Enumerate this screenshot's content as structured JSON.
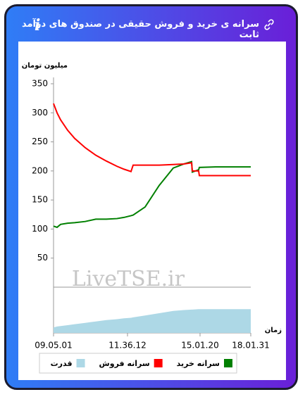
{
  "header": {
    "title": "سرانه ی خرید و فروش حقیقی در صندوق های درآمد ثابت"
  },
  "chart_data": {
    "type": "line",
    "y_label": "میلیون تومان",
    "x_label": "زمان",
    "watermark": "LiveTSE.ir",
    "x": [
      0,
      5,
      10,
      20,
      30,
      45,
      60,
      75,
      90,
      100,
      110,
      113,
      130,
      150,
      170,
      185,
      196,
      197,
      206,
      207,
      230,
      255,
      280
    ],
    "series": [
      {
        "name": "سرانه خرید",
        "color": "#008000",
        "values": [
          105,
          103,
          108,
          110,
          111,
          113,
          117,
          117,
          118,
          120,
          123,
          124,
          138,
          175,
          205,
          212,
          216,
          198,
          202,
          206,
          207,
          207,
          207
        ]
      },
      {
        "name": "سرانه فروش",
        "color": "#ff0000",
        "values": [
          316,
          300,
          288,
          270,
          256,
          240,
          227,
          217,
          208,
          203,
          199,
          210,
          210,
          210,
          211,
          212,
          214,
          200,
          200,
          192,
          192,
          192,
          192
        ]
      },
      {
        "name": "قدرت",
        "color": "#add8e6",
        "axis": "y2",
        "type": "area",
        "values": [
          12,
          14,
          15,
          17,
          19,
          22,
          25,
          28,
          30,
          32,
          33,
          34,
          38,
          43,
          48,
          50,
          51,
          51,
          52,
          52,
          52,
          52,
          52
        ]
      }
    ],
    "xlim": [
      0,
      280
    ],
    "xticks": [
      {
        "value": 0,
        "label": "09.05.01"
      },
      {
        "value": 105,
        "label": "11.36.12"
      },
      {
        "value": 208,
        "label": "15.01.20"
      },
      {
        "value": 280,
        "label": "18.01.31"
      }
    ],
    "ylim": [
      0,
      350
    ],
    "yticks": [
      50,
      100,
      150,
      200,
      250,
      300,
      350
    ],
    "y2lim": [
      0,
      100
    ],
    "legend": "bottom"
  }
}
